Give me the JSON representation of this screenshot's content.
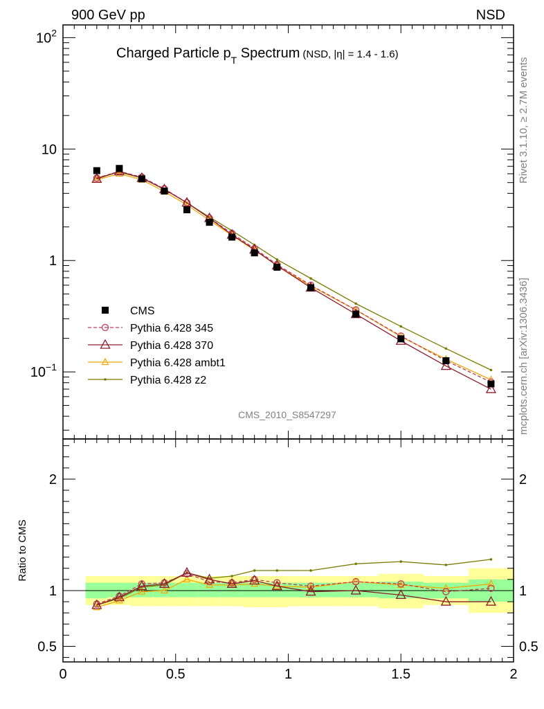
{
  "header": {
    "left": "900 GeV pp",
    "right": "NSD"
  },
  "title": {
    "main_part1": "Charged Particle p",
    "main_sub": "T",
    "main_part2": " Spectrum",
    "qualifier": "(NSD, |η| = 1.4 - 1.6)"
  },
  "side_labels": {
    "rivet": "Rivet 3.1.10, ≥ 2.7M events",
    "mcplots": "mcplots.cern.ch [arXiv:1306.3436]"
  },
  "analysis_id": "CMS_2010_S8547297",
  "colors": {
    "cms": "#000000",
    "p345": "#c0395a",
    "p370": "#8b1a2b",
    "ambt1": "#f0a800",
    "z2": "#7a7a00",
    "band_inner": "#99ff99",
    "band_outer": "#ffff99"
  },
  "chart_data": [
    {
      "type": "scatter",
      "name": "main",
      "yscale": "log",
      "xlim": [
        0,
        2
      ],
      "ylim": [
        0.025,
        130
      ],
      "ytick_labels": [
        "10^-1",
        "1",
        "10",
        "10^2"
      ],
      "legend_placement": "middle-left",
      "x": [
        0.15,
        0.25,
        0.35,
        0.45,
        0.55,
        0.65,
        0.75,
        0.85,
        0.95,
        1.1,
        1.3,
        1.5,
        1.7,
        1.9
      ],
      "series": [
        {
          "name": "CMS",
          "values": [
            6.4,
            6.7,
            5.4,
            4.2,
            2.85,
            2.2,
            1.62,
            1.17,
            0.87,
            0.57,
            0.33,
            0.198,
            0.126,
            0.078
          ]
        },
        {
          "name": "Pythia 6.428 345",
          "values": [
            5.5,
            6.3,
            5.6,
            4.4,
            3.3,
            2.4,
            1.75,
            1.28,
            0.92,
            0.6,
            0.36,
            0.21,
            0.126,
            0.081
          ]
        },
        {
          "name": "Pythia 6.428 370",
          "values": [
            5.4,
            6.3,
            5.5,
            4.35,
            3.3,
            2.4,
            1.7,
            1.25,
            0.9,
            0.57,
            0.33,
            0.19,
            0.113,
            0.07
          ]
        },
        {
          "name": "Pythia 6.428 ambt1",
          "values": [
            5.3,
            6.0,
            5.3,
            4.15,
            3.15,
            2.3,
            1.68,
            1.24,
            0.9,
            0.59,
            0.36,
            0.207,
            0.13,
            0.085
          ]
        },
        {
          "name": "Pythia 6.428 z2",
          "values": [
            5.5,
            6.2,
            5.5,
            4.35,
            3.3,
            2.45,
            1.85,
            1.38,
            1.02,
            0.69,
            0.41,
            0.256,
            0.162,
            0.104
          ]
        }
      ]
    },
    {
      "type": "scatter",
      "name": "ratio",
      "ylabel": "Ratio to CMS",
      "xlim": [
        0,
        2
      ],
      "ylim": [
        0.36,
        2.36
      ],
      "xtick_labels": [
        "0",
        "0.5",
        "1",
        "1.5",
        "2"
      ],
      "ytick_labels": [
        "0.5",
        "1",
        "2"
      ],
      "x": [
        0.15,
        0.25,
        0.35,
        0.45,
        0.55,
        0.65,
        0.75,
        0.85,
        0.95,
        1.1,
        1.3,
        1.5,
        1.7,
        1.9
      ],
      "band_edges": [
        0.1,
        0.2,
        0.3,
        0.4,
        0.5,
        0.6,
        0.7,
        0.8,
        0.9,
        1.0,
        1.2,
        1.4,
        1.6,
        1.8,
        2.0
      ],
      "band_inner": [
        [
          0.93,
          1.07
        ],
        [
          0.94,
          1.07
        ],
        [
          0.94,
          1.07
        ],
        [
          0.94,
          1.07
        ],
        [
          0.94,
          1.07
        ],
        [
          0.94,
          1.07
        ],
        [
          0.94,
          1.07
        ],
        [
          0.94,
          1.07
        ],
        [
          0.94,
          1.07
        ],
        [
          0.94,
          1.07
        ],
        [
          0.94,
          1.07
        ],
        [
          0.93,
          1.08
        ],
        [
          0.93,
          1.07
        ],
        [
          0.9,
          1.1
        ]
      ],
      "band_outer": [
        [
          0.87,
          1.13
        ],
        [
          0.87,
          1.13
        ],
        [
          0.86,
          1.13
        ],
        [
          0.86,
          1.13
        ],
        [
          0.86,
          1.13
        ],
        [
          0.86,
          1.13
        ],
        [
          0.86,
          1.13
        ],
        [
          0.85,
          1.13
        ],
        [
          0.85,
          1.13
        ],
        [
          0.86,
          1.13
        ],
        [
          0.86,
          1.13
        ],
        [
          0.84,
          1.15
        ],
        [
          0.87,
          1.13
        ],
        [
          0.8,
          1.2
        ]
      ],
      "series": [
        {
          "name": "Pythia 6.428 345",
          "values": [
            0.88,
            0.95,
            1.06,
            1.07,
            1.15,
            1.08,
            1.07,
            1.1,
            1.07,
            1.04,
            1.08,
            1.06,
            0.99,
            1.02
          ]
        },
        {
          "name": "Pythia 6.428 370",
          "values": [
            0.87,
            0.94,
            1.04,
            1.06,
            1.16,
            1.1,
            1.06,
            1.09,
            1.04,
            0.99,
            1.0,
            0.96,
            0.9,
            0.9
          ]
        },
        {
          "name": "Pythia 6.428 ambt1",
          "values": [
            0.85,
            0.91,
            0.99,
            1.0,
            1.1,
            1.05,
            1.05,
            1.06,
            1.04,
            1.03,
            1.08,
            1.05,
            1.02,
            1.06
          ]
        },
        {
          "name": "Pythia 6.428 z2",
          "values": [
            0.87,
            0.93,
            1.03,
            1.05,
            1.16,
            1.11,
            1.13,
            1.18,
            1.18,
            1.18,
            1.24,
            1.26,
            1.23,
            1.28
          ]
        }
      ]
    }
  ]
}
